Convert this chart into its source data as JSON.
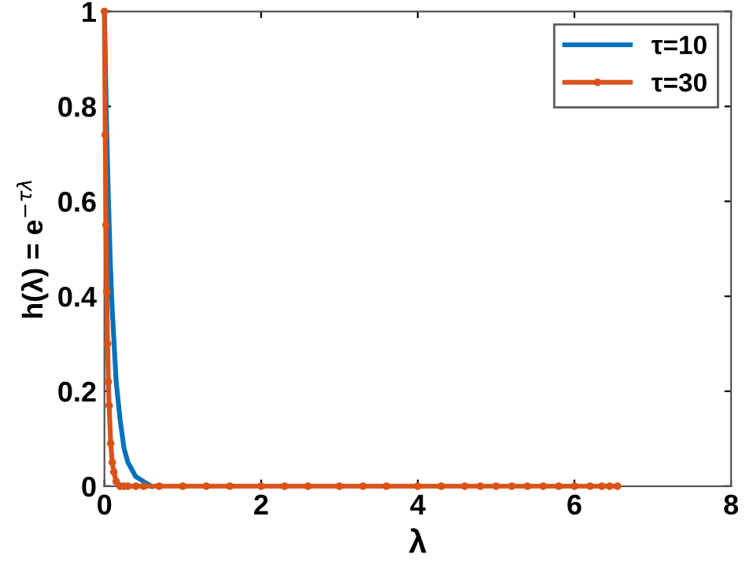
{
  "chart_data": {
    "type": "line",
    "xlabel": "λ",
    "ylabel": "h(λ) = e$^{−τλ}$",
    "series": [
      {
        "name": "τ=10",
        "color": "#0072bd",
        "marker": "none",
        "x": [
          0,
          0.025,
          0.05,
          0.075,
          0.1,
          0.15,
          0.2,
          0.25,
          0.3,
          0.4,
          0.5,
          0.6
        ],
        "values": [
          1,
          0.78,
          0.61,
          0.47,
          0.37,
          0.22,
          0.14,
          0.08,
          0.05,
          0.02,
          0.01,
          0
        ]
      },
      {
        "name": "τ=30",
        "color": "#d95319",
        "marker": "circle",
        "x": [
          0,
          0.01,
          0.02,
          0.03,
          0.04,
          0.05,
          0.06,
          0.08,
          0.1,
          0.12,
          0.15,
          0.2,
          0.25,
          0.3,
          0.4,
          0.5,
          0.7,
          1,
          1.3,
          1.6,
          2,
          2.3,
          2.6,
          3,
          3.3,
          3.6,
          4,
          4.3,
          4.6,
          4.8,
          5,
          5.2,
          5.4,
          5.6,
          5.8,
          6,
          6.2,
          6.35,
          6.45,
          6.55
        ],
        "values": [
          1,
          0.74,
          0.55,
          0.41,
          0.3,
          0.22,
          0.17,
          0.09,
          0.05,
          0.03,
          0.01,
          0,
          0,
          0,
          0,
          0,
          0,
          0,
          0,
          0,
          0,
          0,
          0,
          0,
          0,
          0,
          0,
          0,
          0,
          0,
          0,
          0,
          0,
          0,
          0,
          0,
          0,
          0,
          0,
          0
        ]
      }
    ],
    "xlim": [
      0,
      8
    ],
    "ylim": [
      0,
      1
    ],
    "xticks": [
      0,
      2,
      4,
      6,
      8
    ],
    "yticks": [
      0,
      0.2,
      0.4,
      0.6,
      0.8,
      1
    ],
    "grid": false,
    "legend": "top right",
    "line_style": "solid"
  }
}
